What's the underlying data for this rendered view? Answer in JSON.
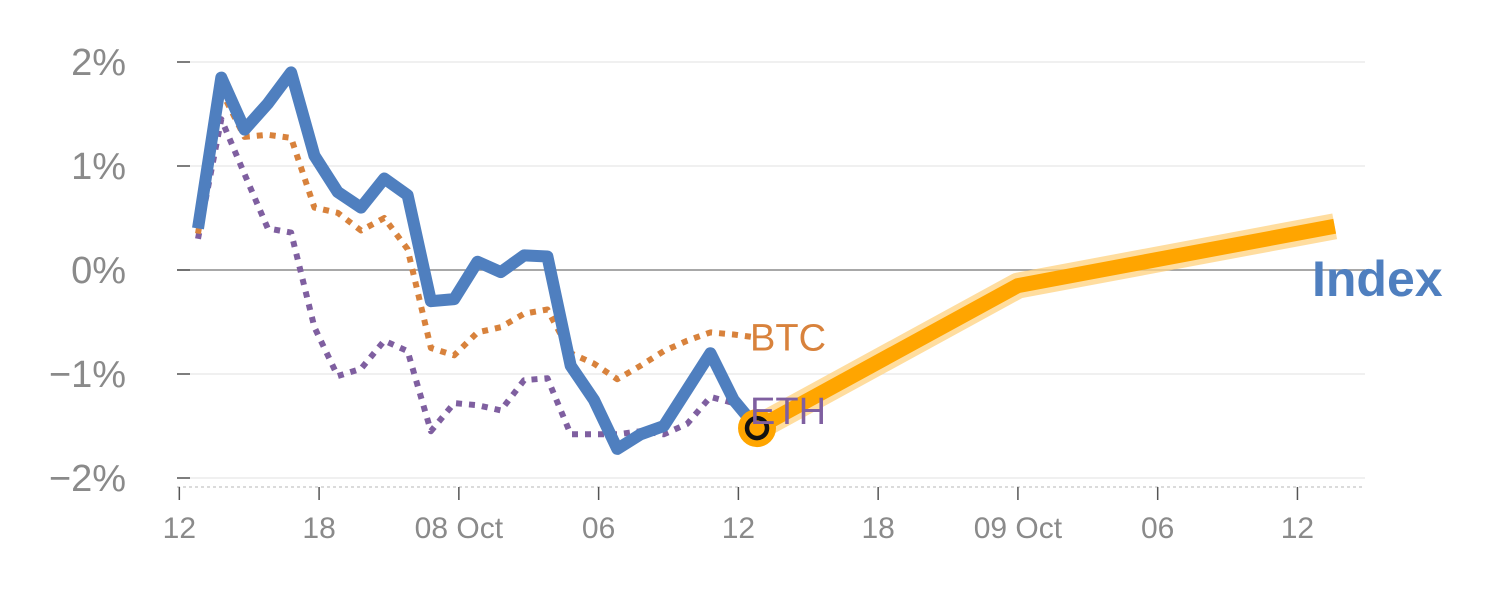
{
  "chart_data": {
    "type": "line",
    "title": "",
    "xlabel": "",
    "ylabel": "",
    "y_unit": "%",
    "ylim": [
      -2.0,
      2.0
    ],
    "y_ticks": [
      2,
      1,
      0,
      -1,
      -2
    ],
    "y_tick_labels": [
      "2%",
      "1%",
      "0%",
      "−1%",
      "−2%"
    ],
    "x_tick_labels": [
      "12",
      "18",
      "08 Oct",
      "06",
      "12",
      "18",
      "09 Oct",
      "06",
      "12"
    ],
    "x_time_unit": "hours",
    "x_tick_hours": [
      12,
      18,
      24,
      30,
      36,
      42,
      48,
      54,
      60
    ],
    "xlim": [
      11.9,
      62.9
    ],
    "grid": true,
    "zero_line": true,
    "legend": "none",
    "colors": {
      "index": "#4f7fbf",
      "btc": "#d8823c",
      "eth": "#7f5fa0",
      "forecast": "#ffa500",
      "forecast_halo": "#ffd27f",
      "grid": "#e6e6e6",
      "zero": "#8c8c8c",
      "tick": "#8a8a8a"
    },
    "series": [
      {
        "key": "index",
        "name": "Index",
        "style": "solid",
        "x": [
          12.8,
          13.8,
          14.8,
          15.8,
          16.8,
          17.8,
          18.8,
          19.8,
          20.8,
          21.8,
          22.8,
          23.8,
          24.8,
          25.8,
          26.8,
          27.8,
          28.8,
          29.8,
          30.8,
          31.8,
          32.8,
          33.8,
          34.8,
          35.8,
          36.8
        ],
        "values": [
          0.4,
          1.85,
          1.35,
          1.6,
          1.9,
          1.1,
          0.75,
          0.6,
          0.88,
          0.72,
          -0.3,
          -0.28,
          0.08,
          -0.02,
          0.14,
          0.13,
          -0.92,
          -1.25,
          -1.72,
          -1.58,
          -1.5,
          -1.15,
          -0.8,
          -1.25,
          -1.52
        ]
      },
      {
        "key": "btc",
        "name": "BTC",
        "style": "dotted",
        "x": [
          12.8,
          13.8,
          14.8,
          15.8,
          16.8,
          17.8,
          18.8,
          19.8,
          20.8,
          21.8,
          22.8,
          23.8,
          24.8,
          25.8,
          26.8,
          27.8,
          28.8,
          29.8,
          30.8,
          31.8,
          32.8,
          33.8,
          34.8,
          35.8,
          36.8
        ],
        "values": [
          0.35,
          1.72,
          1.28,
          1.3,
          1.27,
          0.6,
          0.55,
          0.38,
          0.5,
          0.2,
          -0.75,
          -0.82,
          -0.6,
          -0.55,
          -0.42,
          -0.38,
          -0.8,
          -0.9,
          -1.05,
          -0.92,
          -0.78,
          -0.68,
          -0.6,
          -0.62,
          -0.65
        ]
      },
      {
        "key": "eth",
        "name": "ETH",
        "style": "dotted",
        "x": [
          12.8,
          13.8,
          14.8,
          15.8,
          16.8,
          17.8,
          18.8,
          19.8,
          20.8,
          21.8,
          22.8,
          23.8,
          24.8,
          25.8,
          26.8,
          27.8,
          28.8,
          29.8,
          30.8,
          31.8,
          32.8,
          33.8,
          34.8,
          35.8,
          36.8
        ],
        "values": [
          0.3,
          1.45,
          0.92,
          0.4,
          0.36,
          -0.55,
          -1.02,
          -0.95,
          -0.68,
          -0.78,
          -1.55,
          -1.28,
          -1.3,
          -1.35,
          -1.06,
          -1.04,
          -1.58,
          -1.58,
          -1.58,
          -1.55,
          -1.58,
          -1.48,
          -1.22,
          -1.28,
          -1.5
        ]
      },
      {
        "key": "forecast",
        "name": "",
        "style": "thick",
        "x": [
          36.8,
          48.0,
          61.6
        ],
        "values": [
          -1.52,
          -0.15,
          0.42
        ]
      }
    ],
    "end_labels": [
      {
        "series": "btc",
        "text": "BTC"
      },
      {
        "series": "eth",
        "text": "ETH"
      },
      {
        "series": "index",
        "text": "Index"
      }
    ],
    "marker": {
      "x": 36.8,
      "y": -1.52
    }
  }
}
